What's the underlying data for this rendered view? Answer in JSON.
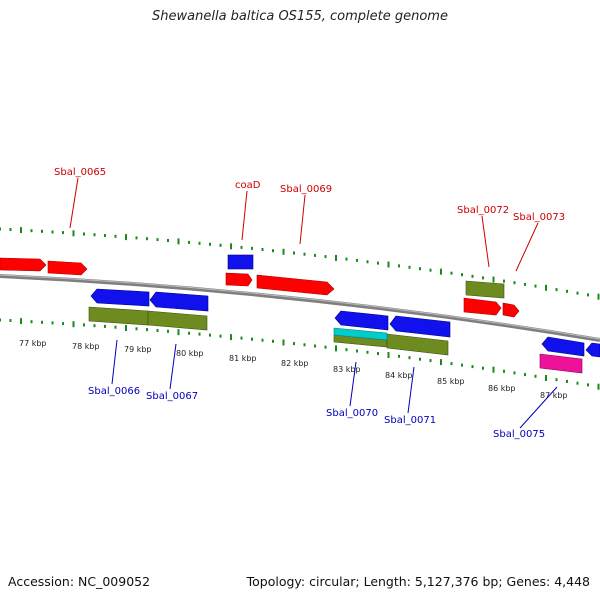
{
  "title": "Shewanella baltica OS155, complete genome",
  "footer": {
    "accession": "Accession: NC_009052",
    "summary": "Topology: circular; Length: 5,127,376 bp; Genes: 4,448"
  },
  "colors": {
    "forward_label": "#cc0000",
    "reverse_label": "#0000bb",
    "backbone": "#7f7f7f",
    "tick": "#1a8a1a",
    "cds_forward": "#ff0000",
    "cds_reverse": "#0000ee",
    "rna_band": "#6e8b1f",
    "cyan_band": "#00cccc",
    "pink_band": "#ee1199"
  },
  "tick_labels": [
    "77 kbp",
    "78 kbp",
    "79 kbp",
    "80 kbp",
    "81 kbp",
    "82 kbp",
    "83 kbp",
    "84 kbp",
    "85 kbp",
    "86 kbp",
    "87 kbp"
  ],
  "gene_labels": {
    "forward": [
      "Sbal_0065",
      "coaD",
      "Sbal_0069",
      "Sbal_0072",
      "Sbal_0073"
    ],
    "reverse": [
      "Sbal_0066",
      "Sbal_0067",
      "Sbal_0070",
      "Sbal_0071",
      "Sbal_0075"
    ]
  }
}
